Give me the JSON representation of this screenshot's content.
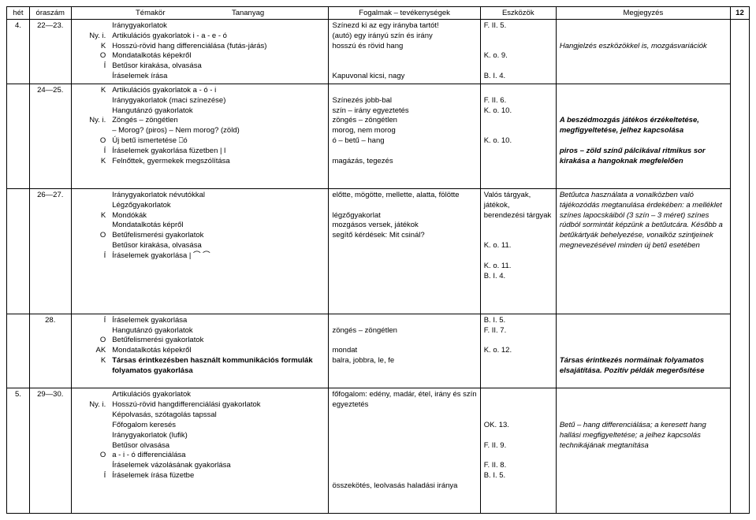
{
  "page_number": "12",
  "headers": [
    "hét",
    "óraszám",
    "Témakör",
    "Tananyag",
    "Fogalmak – tevékenységek",
    "Eszközök",
    "Megjegyzés"
  ],
  "rows": [
    {
      "het": "4.",
      "ora": "22—23.",
      "tema_codes": [
        "",
        "Ny. i.",
        "K",
        "O",
        "Í"
      ],
      "tananyag": [
        "Iránygyakorlatok",
        "Artikulációs gyakorlatok i - a - e - ó",
        "Hosszú-rövid hang differenciálása (futás-járás)",
        "Mondatalkotás képekről",
        "Betűsor kirakása, olvasása",
        "Íráselemek írása"
      ],
      "fogalmak": [
        "Színezd ki az egy irányba tartót!",
        "(autó) egy irányú szín és irány",
        "hosszú és rövid hang",
        "",
        "",
        "Kapuvonal kicsi, nagy"
      ],
      "eszkozok": [
        "F. II. 5.",
        "",
        "",
        "K. o. 9.",
        "",
        "B. I. 4."
      ],
      "megjegyzes": [
        "",
        "",
        "Hangjelzés eszközökkel is, mozgásvariációk",
        "",
        "",
        ""
      ]
    },
    {
      "het": "",
      "ora": "24—25.",
      "tema_codes": [
        "K",
        "",
        "",
        "Ny. i.",
        "",
        "O",
        "Í",
        "K"
      ],
      "tananyag": [
        "Artikulációs gyakorlatok a - ó - i",
        "Iránygyakorlatok (maci színezése)",
        "Hangutánzó gyakorlatok",
        "Zöngés – zöngétlen",
        "– Morog? (piros) – Nem morog? (zöld)",
        "Új betű ismertetése ⎕ó",
        "Íráselemek gyakorlása füzetben | l",
        "Felnőttek, gyermekek megszólítása"
      ],
      "fogalmak": [
        "",
        "Színezés jobb-bal",
        "szín – irány egyeztetés",
        "zöngés – zöngétlen",
        "morog, nem morog",
        "ó – betű – hang",
        "",
        "magázás, tegezés"
      ],
      "eszkozok": [
        "",
        "F. II. 6.",
        "K. o. 10.",
        "",
        "",
        "K. o. 10.",
        "",
        ""
      ],
      "megjegyzes": [
        "",
        "",
        "",
        "A beszédmozgás játékos érzékeltetése, megfigyeltetése, jelhez kapcsolása",
        "",
        "piros – zöld színű pálcikával ritmikus sor kirakása a hangoknak megfelelően",
        "",
        ""
      ]
    },
    {
      "het": "",
      "ora": "26—27.",
      "tema_codes": [
        "",
        "",
        "K",
        "",
        "O",
        "",
        "Í"
      ],
      "tananyag": [
        "Iránygyakorlatok névutókkal",
        "Légzőgyakorlatok",
        "Mondókák",
        "Mondatalkotás képről",
        "Betűfelismerési gyakorlatok",
        "Betűsor kirakása, olvasása",
        "Íráselemek gyakorlása | ⌒ ⌒"
      ],
      "fogalmak": [
        "előtte, mögötte, mellette, alatta, fölötte",
        "",
        "légzőgyakorlat",
        "mozgásos versek, játékok",
        "segítő kérdések: Mit csinál?",
        "",
        ""
      ],
      "eszkozok": [
        "Valós tárgyak, játékok, berendezési tárgyak",
        "",
        "",
        "K. o. 11.",
        "",
        "K. o. 11.",
        "B. I. 4."
      ],
      "megjegyzes": [
        "Betűutca használata a vonalközben való tájékozódás megtanulása érdekében: a melléklet színes lapocskáiból (3 szín – 3 méret) színes rúdból sormintát képzünk a betűutcára. Később a betűkártyák behelyezése, vonalköz szintjeinek megnevezésével minden új betű esetében",
        "",
        "",
        "",
        "",
        "",
        ""
      ]
    },
    {
      "het": "",
      "ora": "28.",
      "tema_codes": [
        "Í",
        "",
        "O",
        "AK",
        "K",
        ""
      ],
      "tananyag": [
        "Íráselemek gyakorlása",
        "Hangutánzó gyakorlatok",
        "Betűfelismerési gyakorlatok",
        "Mondatalkotás képekről",
        "Társas érintkezésben használt kommunikációs formulák folyamatos gyakorlása",
        ""
      ],
      "fogalmak": [
        "",
        "zöngés – zöngétlen",
        "",
        "mondat",
        "balra, jobbra, le, fe",
        ""
      ],
      "eszkozok": [
        "B. I. 5.",
        "F. II. 7.",
        "",
        "K. o. 12.",
        "",
        ""
      ],
      "megjegyzes": [
        "",
        "",
        "",
        "",
        "Társas érintkezés normáinak folyamatos elsajátítása. Pozitív példák megerősítése",
        ""
      ]
    },
    {
      "het": "5.",
      "ora": "29—30.",
      "tema_codes": [
        "",
        "Ny. i.",
        "",
        "",
        "",
        "",
        "O",
        "",
        "Í",
        ""
      ],
      "tananyag": [
        "Artikulációs gyakorlatok",
        "Hosszú-rövid hangdifferenciálási gyakorlatok",
        "Képolvasás, szótagolás tapssal",
        "Főfogalom keresés",
        "Iránygyakorlatok (lufik)",
        "Betűsor olvasása",
        "a - i - ó differenciálása",
        "Íráselemek vázolásának gyakorlása",
        "Íráselemek írása füzetbe",
        ""
      ],
      "fogalmak": [
        "főfogalom: edény, madár, étel, irány és szín egyeztetés",
        "",
        "",
        "",
        "",
        "",
        "",
        "",
        "összekötés, leolvasás haladási iránya",
        ""
      ],
      "eszkozok": [
        "",
        "",
        "",
        "OK. 13.",
        "",
        "F. II. 9.",
        "",
        "F. II. 8.",
        "B. I. 5.",
        ""
      ],
      "megjegyzes": [
        "",
        "",
        "",
        "Betű – hang differenciálása; a keresett hang hallási megfigyeltetése; a jelhez kapcsolás technikájának megtanítása",
        "",
        "",
        "",
        "",
        "",
        ""
      ]
    }
  ]
}
